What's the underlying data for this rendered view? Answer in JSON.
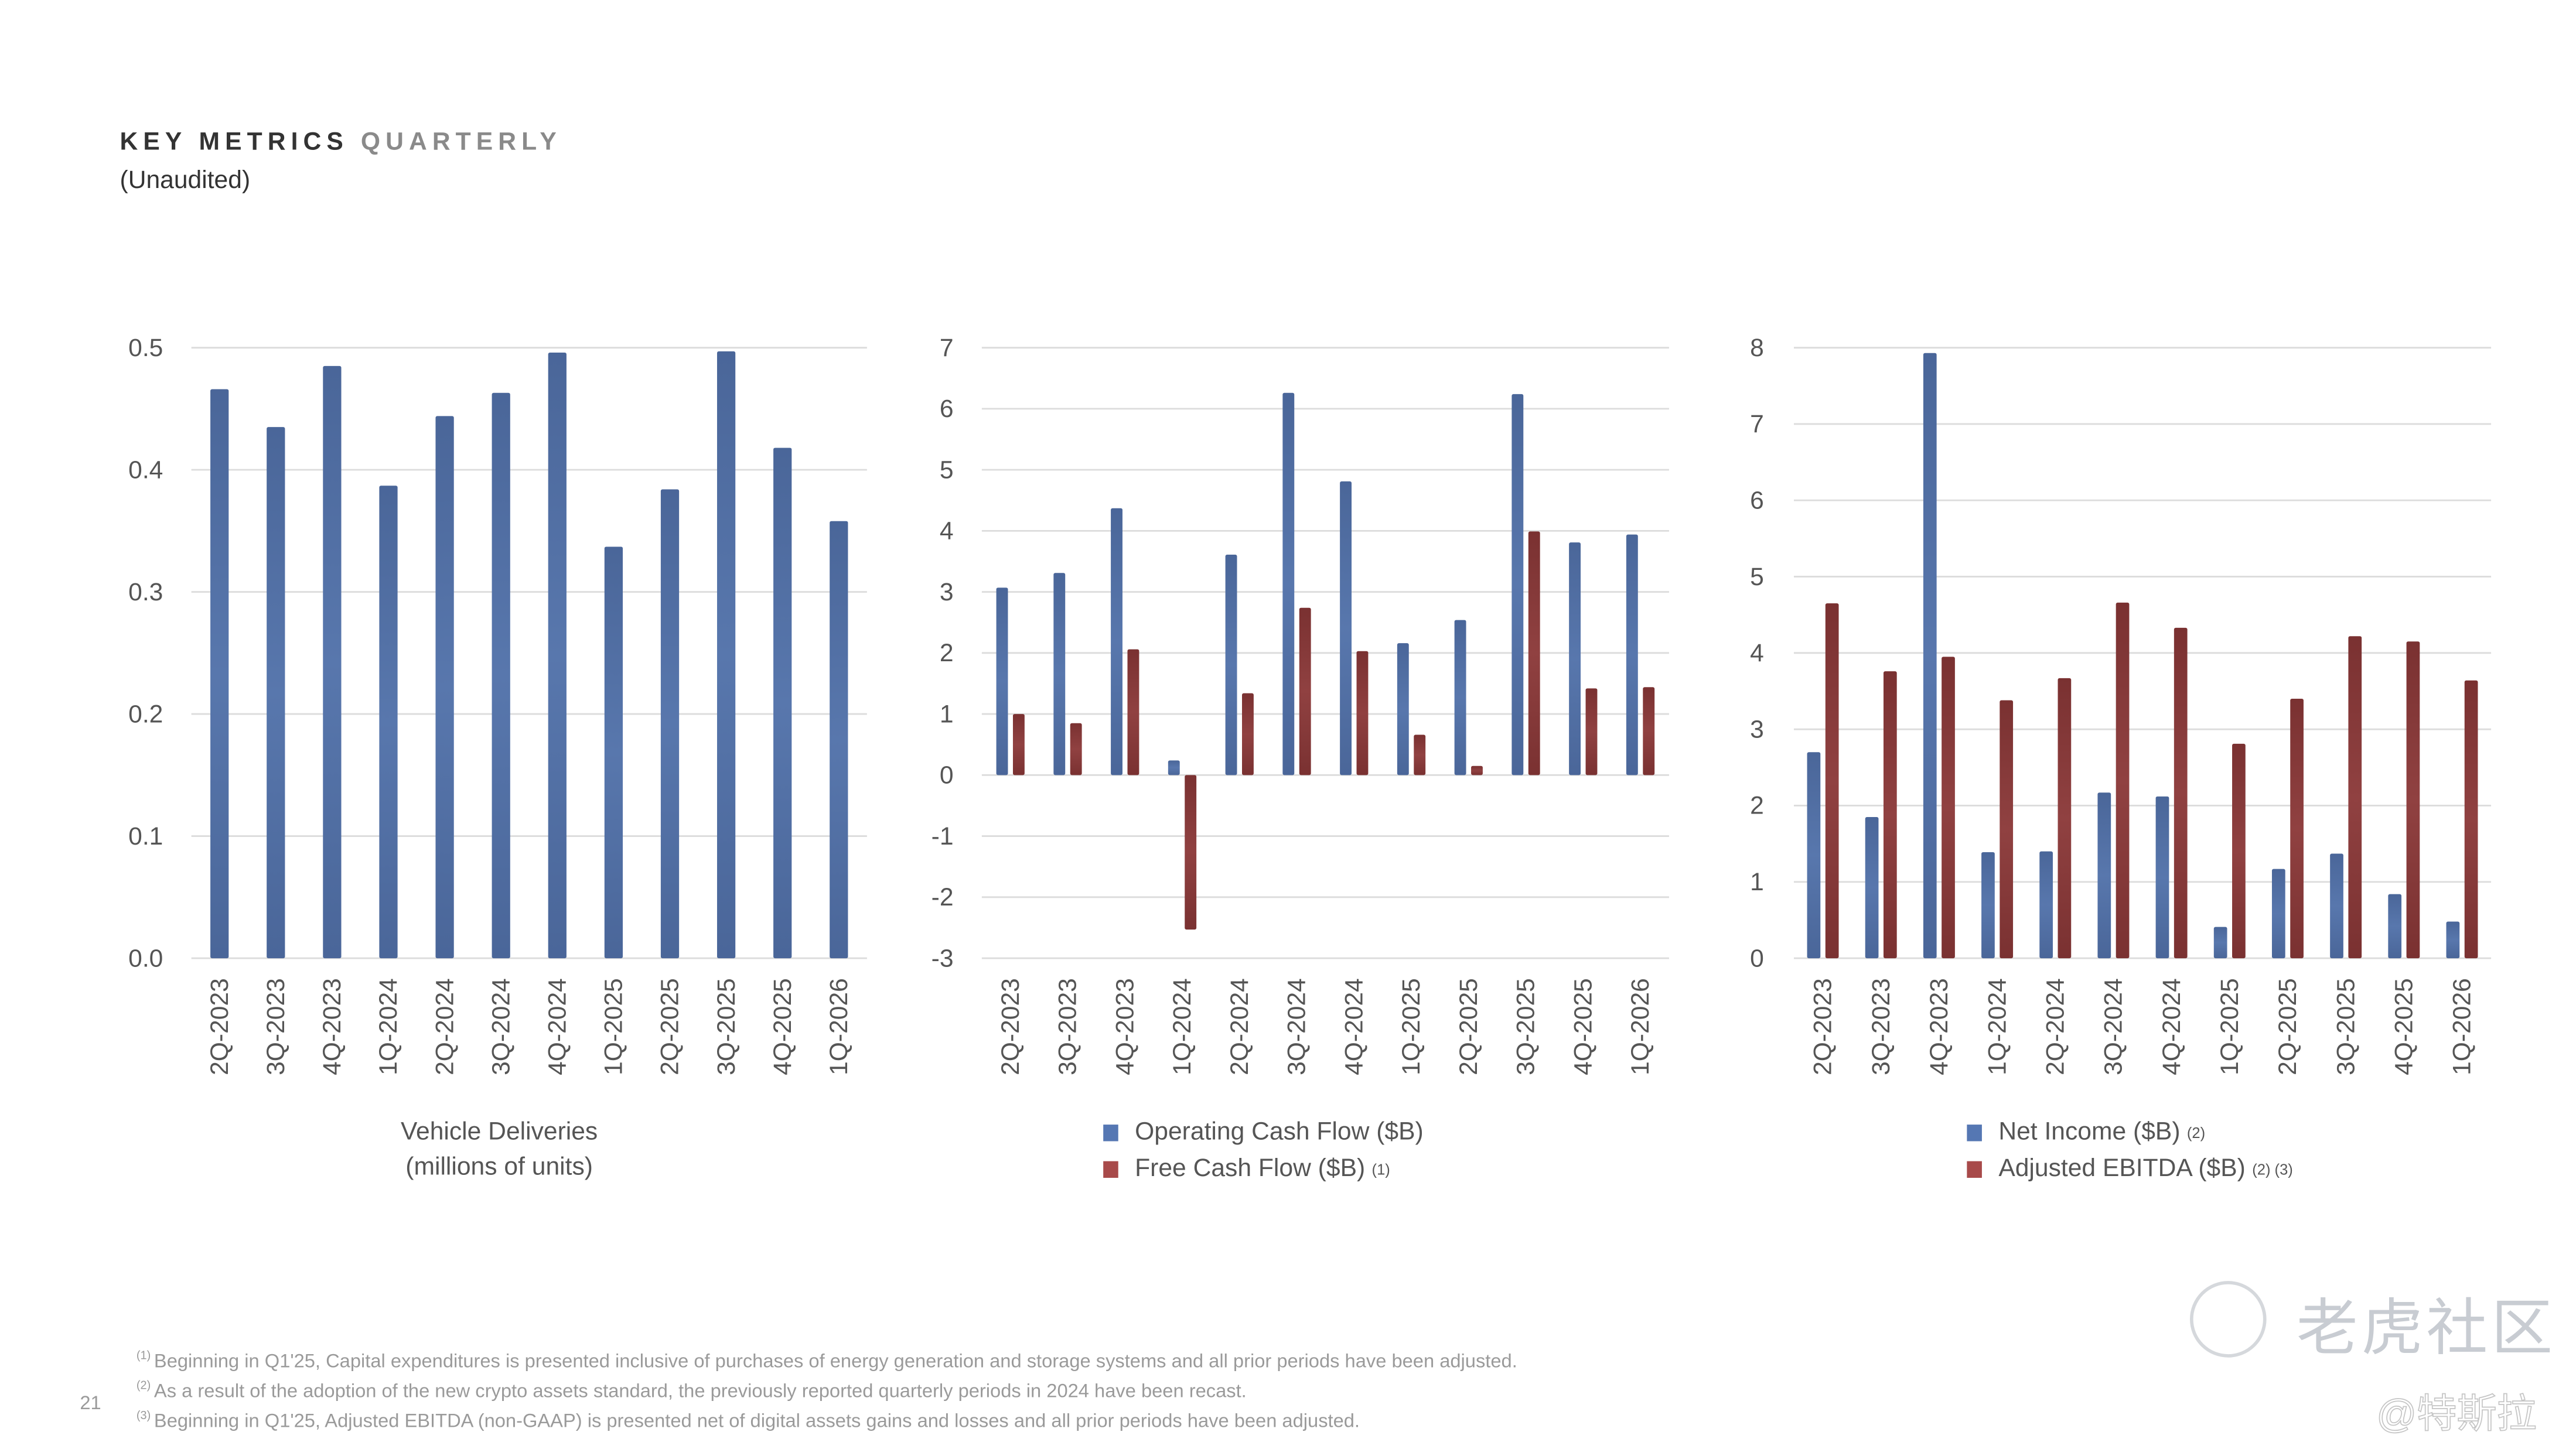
{
  "header": {
    "title_dark": "KEY METRICS",
    "title_light": "QUARTERLY",
    "subtitle": "(Unaudited)"
  },
  "colors": {
    "blue": "#4a6699",
    "blue_light": "#5877ad",
    "red": "#7a3131",
    "red_light": "#904141",
    "legend_blue": "#5577b3",
    "legend_red": "#a84a4a",
    "grid": "#dcdcdc",
    "axis_text": "#555555"
  },
  "chart_data": [
    {
      "type": "bar",
      "categories": [
        "2Q-2023",
        "3Q-2023",
        "4Q-2023",
        "1Q-2024",
        "2Q-2024",
        "3Q-2024",
        "4Q-2024",
        "1Q-2025",
        "2Q-2025",
        "3Q-2025",
        "4Q-2025",
        "1Q-2026"
      ],
      "series": [
        {
          "values": [
            0.466,
            0.435,
            0.485,
            0.387,
            0.444,
            0.463,
            0.496,
            0.337,
            0.384,
            0.497,
            0.418,
            0.358
          ]
        }
      ],
      "xlabel": "Vehicle Deliveries",
      "xlabel2": "(millions of units)",
      "ylim": [
        0,
        0.5
      ],
      "yticks": [
        "0.0",
        "0.1",
        "0.2",
        "0.3",
        "0.4",
        "0.5"
      ],
      "grid": true
    },
    {
      "type": "bar",
      "categories": [
        "2Q-2023",
        "3Q-2023",
        "4Q-2023",
        "1Q-2024",
        "2Q-2024",
        "3Q-2024",
        "4Q-2024",
        "1Q-2025",
        "2Q-2025",
        "3Q-2025",
        "4Q-2025",
        "1Q-2026"
      ],
      "series": [
        {
          "name": "Operating Cash Flow ($B)",
          "values": [
            3.07,
            3.31,
            4.37,
            0.24,
            3.61,
            6.26,
            4.81,
            2.16,
            2.54,
            6.24,
            3.81,
            3.94
          ]
        },
        {
          "name": "Free Cash Flow ($B)",
          "note": "(1)",
          "values": [
            1.0,
            0.85,
            2.06,
            -2.53,
            1.34,
            2.74,
            2.03,
            0.66,
            0.15,
            3.99,
            1.42,
            1.44
          ]
        }
      ],
      "ylim": [
        -3,
        7
      ],
      "yticks": [
        "-3",
        "-2",
        "-1",
        "0",
        "1",
        "2",
        "3",
        "4",
        "5",
        "6",
        "7"
      ],
      "grid": true,
      "legend": "bottom"
    },
    {
      "type": "bar",
      "categories": [
        "2Q-2023",
        "3Q-2023",
        "4Q-2023",
        "1Q-2024",
        "2Q-2024",
        "3Q-2024",
        "4Q-2024",
        "1Q-2025",
        "2Q-2025",
        "3Q-2025",
        "4Q-2025",
        "1Q-2026"
      ],
      "series": [
        {
          "name": "Net Income ($B)",
          "note": "(2)",
          "values": [
            2.7,
            1.85,
            7.93,
            1.39,
            1.4,
            2.17,
            2.12,
            0.41,
            1.17,
            1.37,
            0.84,
            0.48
          ]
        },
        {
          "name": "Adjusted EBITDA ($B)",
          "note": "(2) (3)",
          "values": [
            4.65,
            3.76,
            3.95,
            3.38,
            3.67,
            4.66,
            4.33,
            2.81,
            3.4,
            4.22,
            4.15,
            3.64
          ]
        }
      ],
      "ylim": [
        0,
        8
      ],
      "yticks": [
        "0",
        "1",
        "2",
        "3",
        "4",
        "5",
        "6",
        "7",
        "8"
      ],
      "grid": true,
      "legend": "bottom"
    }
  ],
  "footnotes": [
    {
      "mark": "(1)",
      "text": "Beginning in Q1'25, Capital expenditures is presented inclusive of purchases of energy generation and storage systems and all prior periods have been adjusted."
    },
    {
      "mark": "(2)",
      "text": "As a result of the adoption of the new crypto assets standard, the previously reported quarterly periods in 2024 have been recast."
    },
    {
      "mark": "(3)",
      "text": "Beginning in Q1'25, Adjusted EBITDA (non-GAAP) is presented net of digital assets gains and losses and all prior periods have been adjusted."
    }
  ],
  "page_number": "21",
  "watermark": {
    "brand": "老虎社区",
    "handle": "@特斯拉"
  }
}
